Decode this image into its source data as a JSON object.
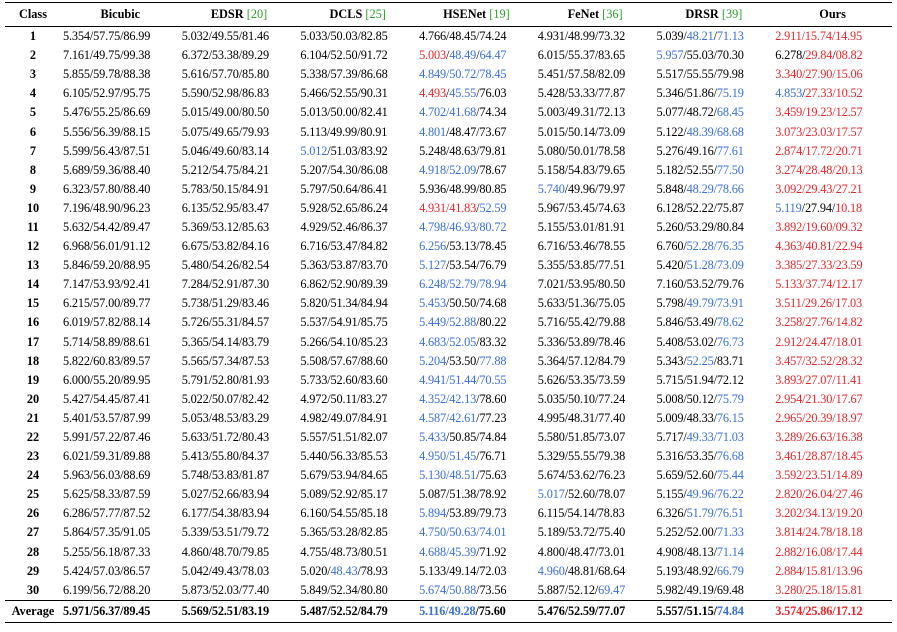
{
  "colors": {
    "best": "#e8262b",
    "second": "#3a6fd8",
    "citation": "#2ca02c"
  },
  "headers": [
    {
      "name": "Class",
      "ref": ""
    },
    {
      "name": "Bicubic",
      "ref": ""
    },
    {
      "name": "EDSR ",
      "ref": "[20]"
    },
    {
      "name": "DCLS ",
      "ref": "[25]"
    },
    {
      "name": "HSENet ",
      "ref": "[19]"
    },
    {
      "name": "FeNet ",
      "ref": "[36]"
    },
    {
      "name": "DRSR ",
      "ref": "[39]"
    },
    {
      "name": "Ours",
      "ref": ""
    }
  ],
  "rows": [
    {
      "cls": "1",
      "cells": [
        "5.354/57.75/86.99",
        "5.032/49.55/81.46",
        "5.033/50.03/82.85",
        "4.766/48.45/74.24",
        "4.931/48.99/73.32",
        "5.039/[b]48.21[/]/[b]71.13[/]",
        "[r]2.911/15.74/14.95[/]"
      ]
    },
    {
      "cls": "2",
      "cells": [
        "7.161/49.75/99.38",
        "6.372/53.38/89.29",
        "6.104/52.50/91.72",
        "[r]5.003[/]/[b]48.49[/]/[b]64.47[/]",
        "6.015/55.37/83.65",
        "[b]5.957[/]/55.03/70.30",
        "6.278/[r]29.84[/]/[r]08.82[/]"
      ]
    },
    {
      "cls": "3",
      "cells": [
        "5.855/59.78/88.38",
        "5.616/57.70/85.80",
        "5.338/57.39/86.68",
        "[b]4.849/50.72/78.45[/]",
        "5.451/57.58/82.09",
        "5.517/55.55/79.98",
        "[r]3.340/27.90/15.06[/]"
      ]
    },
    {
      "cls": "4",
      "cells": [
        "6.105/52.97/95.75",
        "5.590/52.98/86.83",
        "5.466/52.55/90.31",
        "[r]4.493[/]/[b]45.55[/]/76.03",
        "5.428/53.33/77.87",
        "5.346/51.86/[b]75.19[/]",
        "[b]4.853[/]/[r]27.33/10.52[/]"
      ]
    },
    {
      "cls": "5",
      "cells": [
        "5.476/55.25/86.69",
        "5.015/49.00/80.50",
        "5.013/50.00/82.41",
        "[b]4.702/41.68[/]/74.34",
        "5.003/49.31/72.13",
        "5.077/48.72/[b]68.45[/]",
        "[r]3.459/19.23/12.57[/]"
      ]
    },
    {
      "cls": "6",
      "cells": [
        "5.556/56.39/88.15",
        "5.075/49.65/79.93",
        "5.113/49.99/80.91",
        "[b]4.801[/]/48.47/73.67",
        "5.015/50.14/73.09",
        "5.122/[b]48.39/68.68[/]",
        "[r]3.073/23.03/17.57[/]"
      ]
    },
    {
      "cls": "7",
      "cells": [
        "5.599/56.43/87.51",
        "5.046/49.60/83.14",
        "[b]5.012[/]/51.03/83.92",
        "5.248/48.63/79.81",
        "5.080/50.01/78.58",
        "5.276/49.16/[b]77.61[/]",
        "[r]2.874/17.72/20.71[/]"
      ]
    },
    {
      "cls": "8",
      "cells": [
        "5.689/59.36/88.40",
        "5.212/54.75/84.21",
        "5.207/54.30/86.08",
        "[b]4.918/52.09[/]/78.67",
        "5.158/54.83/79.65",
        "5.182/52.55/[b]77.50[/]",
        "[r]3.274/28.48/20.13[/]"
      ]
    },
    {
      "cls": "9",
      "cells": [
        "6.323/57.80/88.40",
        "5.783/50.15/84.91",
        "5.797/50.64/86.41",
        "5.936/48.99/80.85",
        "[b]5.740[/]/49.96/79.97",
        "5.848/[b]48.29/78.66[/]",
        "[r]3.092/29.43/27.21[/]"
      ]
    },
    {
      "cls": "10",
      "cells": [
        "7.196/48.90/96.23",
        "6.135/52.95/83.47",
        "5.928/52.65/86.24",
        "[r]4.931/41.83[/]/[b]52.59[/]",
        "5.967/53.45/74.63",
        "6.128/52.22/75.87",
        "[b]5.119[/]/27.94/[r]10.18[/]"
      ]
    },
    {
      "cls": "11",
      "cells": [
        "5.632/54.42/89.47",
        "5.369/53.12/85.63",
        "4.929/52.46/86.37",
        "[b]4.798/46.93/80.72[/]",
        "5.155/53.01/81.91",
        "5.260/53.29/80.84",
        "[r]3.892/19.60/09.32[/]"
      ]
    },
    {
      "cls": "12",
      "cells": [
        "6.968/56.01/91.12",
        "6.675/53.82/84.16",
        "6.716/53.47/84.82",
        "[b]6.256[/]/53.13/78.45",
        "6.716/53.46/78.55",
        "6.760/[b]52.28/76.35[/]",
        "[r]4.363/40.81/22.94[/]"
      ]
    },
    {
      "cls": "13",
      "cells": [
        "5.846/59.20/88.95",
        "5.480/54.26/82.54",
        "5.363/53.87/83.70",
        "[b]5.127[/]/53.54/76.79",
        "5.355/53.85/77.51",
        "5.420/[b]51.28/73.09[/]",
        "[r]3.385/27.33/23.59[/]"
      ]
    },
    {
      "cls": "14",
      "cells": [
        "7.147/53.93/92.41",
        "7.284/52.91/87.30",
        "6.862/52.90/89.39",
        "[b]6.248/52.79/78.94[/]",
        "7.021/53.95/80.50",
        "7.160/53.52/79.76",
        "[r]5.133/37.74/12.17[/]"
      ]
    },
    {
      "cls": "15",
      "cells": [
        "6.215/57.00/89.77",
        "5.738/51.29/83.46",
        "5.820/51.34/84.94",
        "[b]5.453[/]/50.50/74.68",
        "5.633/51.36/75.05",
        "5.798/[b]49.79/73.91[/]",
        "[r]3.511/29.26/17.03[/]"
      ]
    },
    {
      "cls": "16",
      "cells": [
        "6.019/57.82/88.14",
        "5.726/55.31/84.57",
        "5.537/54.91/85.75",
        "[b]5.449/52.88[/]/80.22",
        "5.716/55.42/79.88",
        "5.846/53.49/[b]78.62[/]",
        "[r]3.258/27.76/14.82[/]"
      ]
    },
    {
      "cls": "17",
      "cells": [
        "5.714/58.89/88.61",
        "5.365/54.14/83.79",
        "5.266/54.10/85.23",
        "[b]4.683/52.05[/]/83.32",
        "5.336/53.89/78.46",
        "5.408/53.02/[b]76.73[/]",
        "[r]2.912/24.47/18.01[/]"
      ]
    },
    {
      "cls": "18",
      "cells": [
        "5.822/60.83/89.57",
        "5.565/57.34/87.53",
        "5.508/57.67/88.60",
        "[b]5.204[/]/53.50/[b]77.88[/]",
        "5.364/57.12/84.79",
        "5.343/[b]52.25[/]/83.71",
        "[r]3.457/32.52/28.32[/]"
      ]
    },
    {
      "cls": "19",
      "cells": [
        "6.000/55.20/89.95",
        "5.791/52.80/81.93",
        "5.733/52.60/83.60",
        "[b]4.941/51.44/70.55[/]",
        "5.626/53.35/73.59",
        "5.715/51.94/72.12",
        "[r]3.893/27.07/11.41[/]"
      ]
    },
    {
      "cls": "20",
      "cells": [
        "5.427/54.45/87.41",
        "5.022/50.07/82.42",
        "4.972/50.11/83.27",
        "[b]4.352/42.13[/]/78.60",
        "5.035/50.10/77.24",
        "5.008/50.12/[b]75.79[/]",
        "[r]2.954/21.30/17.67[/]"
      ]
    },
    {
      "cls": "21",
      "cells": [
        "5.401/53.57/87.99",
        "5.053/48.53/83.29",
        "4.982/49.07/84.91",
        "[b]4.587/42.61[/]/77.23",
        "4.995/48.31/77.40",
        "5.009/48.33/[b]76.15[/]",
        "[r]2.965/20.39/18.97[/]"
      ]
    },
    {
      "cls": "22",
      "cells": [
        "5.991/57.22/87.46",
        "5.633/51.72/80.43",
        "5.557/51.51/82.07",
        "[b]5.433[/]/50.85/74.84",
        "5.580/51.85/73.07",
        "5.717/[b]49.33/71.03[/]",
        "[r]3.289/26.63/16.38[/]"
      ]
    },
    {
      "cls": "23",
      "cells": [
        "6.021/59.31/89.88",
        "5.413/55.80/84.37",
        "5.440/56.33/85.53",
        "[b]4.950/51.45[/]/76.71",
        "5.329/55.55/79.38",
        "5.316/53.35/[b]76.68[/]",
        "[r]3.461/28.87/18.45[/]"
      ]
    },
    {
      "cls": "24",
      "cells": [
        "5.963/56.03/88.69",
        "5.748/53.83/81.87",
        "5.679/53.94/84.65",
        "[b]5.130/48.51[/]/75.63",
        "5.674/53.62/76.23",
        "5.659/52.60/[b]75.44[/]",
        "[r]3.592/23.51/14.89[/]"
      ]
    },
    {
      "cls": "25",
      "cells": [
        "5.625/58.33/87.59",
        "5.027/52.66/83.94",
        "5.089/52.92/85.17",
        "5.087/51.38/78.92",
        "[b]5.017[/]/52.60/78.07",
        "5.155/[b]49.96/76.22[/]",
        "[r]2.820/26.04/27.46[/]"
      ]
    },
    {
      "cls": "26",
      "cells": [
        "6.286/57.77/87.52",
        "6.177/54.38/83.94",
        "6.160/54.55/85.18",
        "[b]5.894[/]/53.89/79.73",
        "6.115/54.14/78.83",
        "6.326/[b]51.79/76.51[/]",
        "[r]3.202/34.13/19.20[/]"
      ]
    },
    {
      "cls": "27",
      "cells": [
        "5.864/57.35/91.05",
        "5.339/53.51/79.72",
        "5.365/53.28/82.85",
        "[b]4.750/50.63/74.01[/]",
        "5.189/53.72/75.40",
        "5.252/52.00/[b]71.33[/]",
        "[r]3.814/24.78/18.18[/]"
      ]
    },
    {
      "cls": "28",
      "cells": [
        "5.255/56.18/87.33",
        "4.860/48.70/79.85",
        "4.755/48.73/80.51",
        "[b]4.688/45.39[/]/71.92",
        "4.800/48.47/73.01",
        "4.908/48.13/[b]71.14[/]",
        "[r]2.882/16.08/17.44[/]"
      ]
    },
    {
      "cls": "29",
      "cells": [
        "5.424/57.03/86.57",
        "5.042/49.43/78.03",
        "5.020/[b]48.43[/]/78.93",
        "5.133/49.14/72.03",
        "[b]4.960[/]/48.81/68.64",
        "5.193/48.92/[b]66.79[/]",
        "[r]2.884/15.81/13.96[/]"
      ]
    },
    {
      "cls": "30",
      "cells": [
        "6.199/56.72/88.20",
        "5.873/52.03/77.40",
        "5.849/52.34/80.80",
        "[b]5.674/50.88[/]/73.56",
        "5.887/52.12/[b]69.47[/]",
        "5.982/49.19/69.48",
        "[r]3.280/25.18/15.81[/]"
      ]
    }
  ],
  "average": {
    "cls": "Average",
    "cells": [
      "5.971/56.37/89.45",
      "5.569/52.51/83.19",
      "5.487/52.52/84.79",
      "[b]5.116/49.28[/]/75.60",
      "5.476/52.59/77.07",
      "5.557/51.15/[b]74.84[/]",
      "[r]3.574/25.86/17.12[/]"
    ]
  }
}
